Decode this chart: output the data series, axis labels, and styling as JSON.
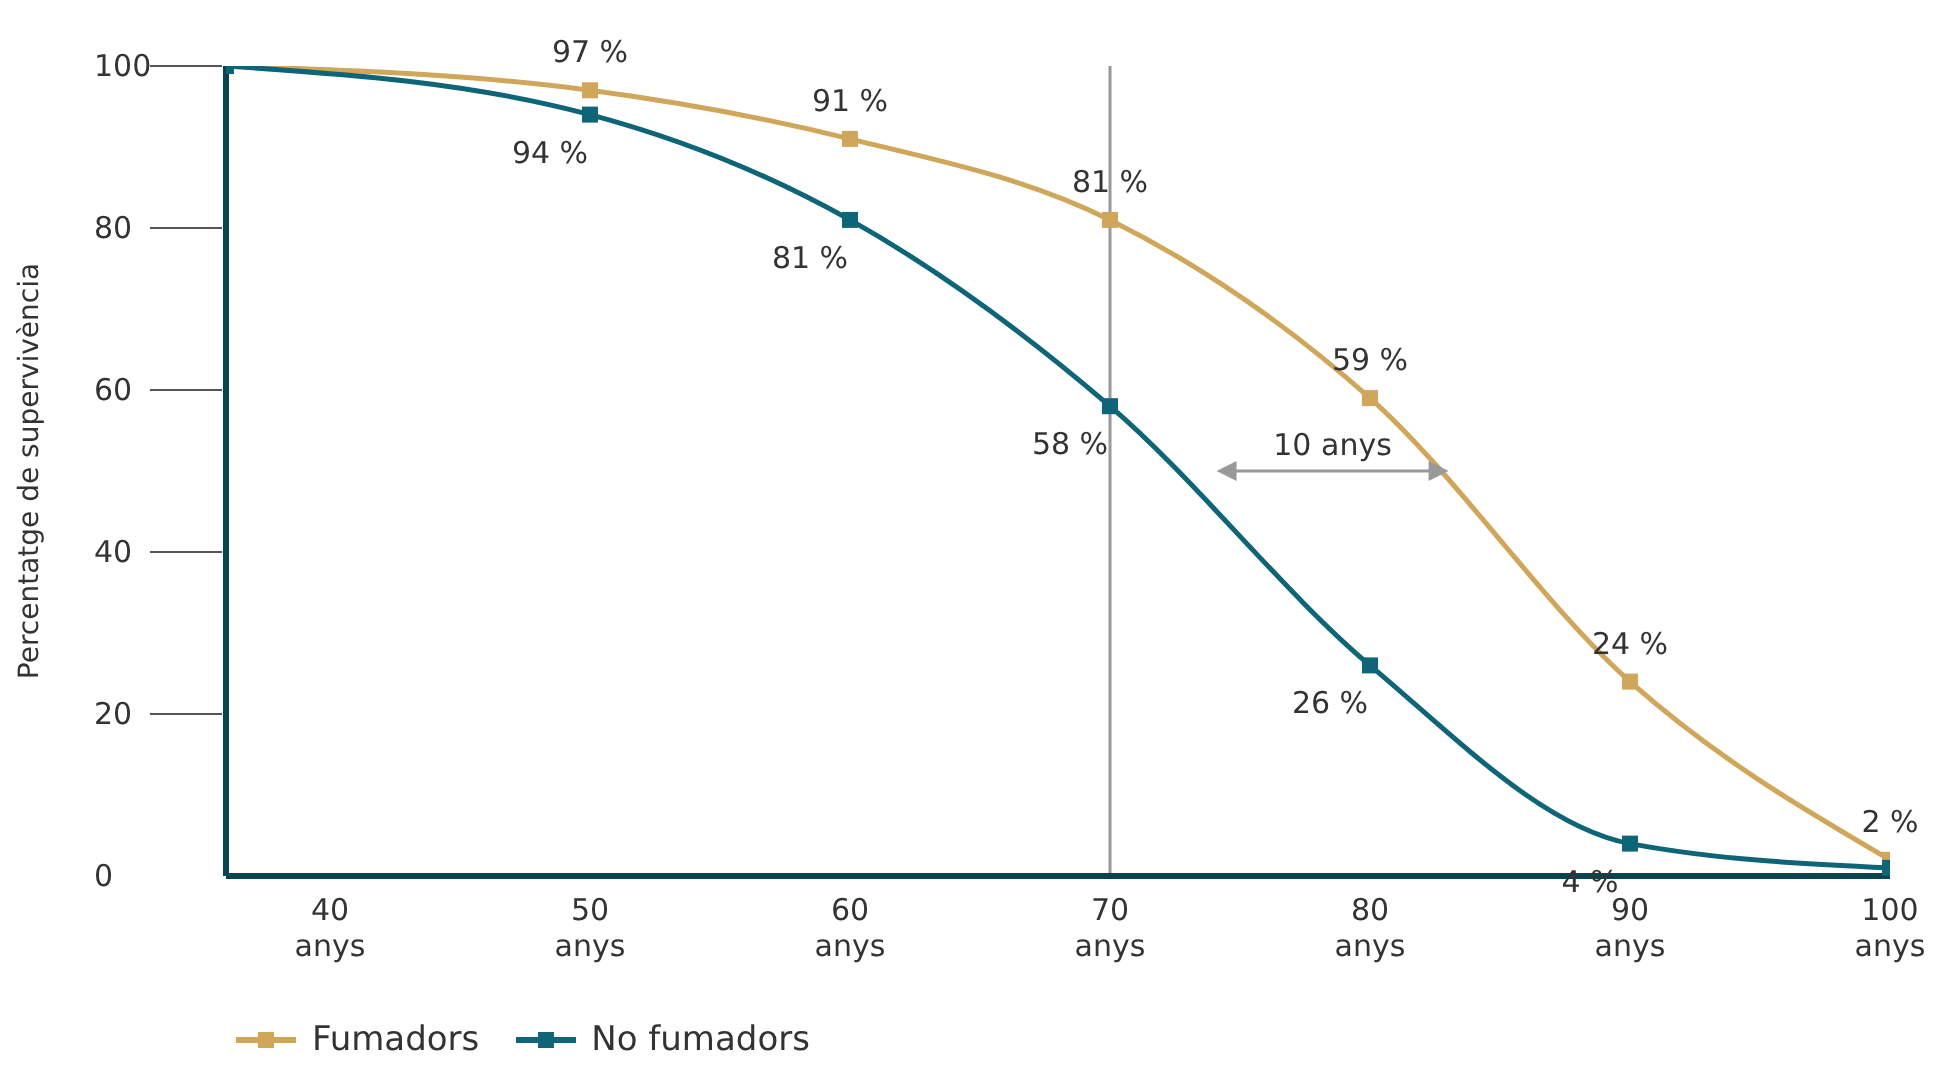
{
  "chart_data": {
    "type": "line",
    "ylabel": "Percentatge de supervivència",
    "x": [
      36,
      50,
      60,
      70,
      80,
      90,
      100
    ],
    "xlim": [
      36,
      100
    ],
    "xticks": [
      {
        "value": 40,
        "label": "40 anys"
      },
      {
        "value": 50,
        "label": "50 anys"
      },
      {
        "value": 60,
        "label": "60 anys"
      },
      {
        "value": 70,
        "label": "70 anys"
      },
      {
        "value": 80,
        "label": "80 anys"
      },
      {
        "value": 90,
        "label": "90 anys"
      },
      {
        "value": 100,
        "label": "100 anys"
      }
    ],
    "ylim": [
      0,
      100
    ],
    "yticks": [
      0,
      20,
      40,
      60,
      80,
      100
    ],
    "legend": "bottom left",
    "marker": "square",
    "line_style": "solid",
    "series": [
      {
        "name": "Fumadors",
        "color": "#cfa65a",
        "values": [
          100,
          97,
          91,
          81,
          59,
          24,
          2
        ],
        "value_labels": [
          null,
          "97 %",
          "91 %",
          "81 %",
          "59 %",
          "24 %",
          "2 %"
        ]
      },
      {
        "name": "No fumadors",
        "color": "#0d6577",
        "values": [
          100,
          94,
          81,
          58,
          26,
          4,
          1
        ],
        "value_labels": [
          null,
          "94 %",
          "81 %",
          "58 %",
          "26 %",
          "4 %",
          null
        ]
      }
    ],
    "ref_lines": [
      {
        "axis": "x",
        "value": 70,
        "color": "#999999"
      }
    ],
    "annotations": [
      "10 anys"
    ]
  }
}
